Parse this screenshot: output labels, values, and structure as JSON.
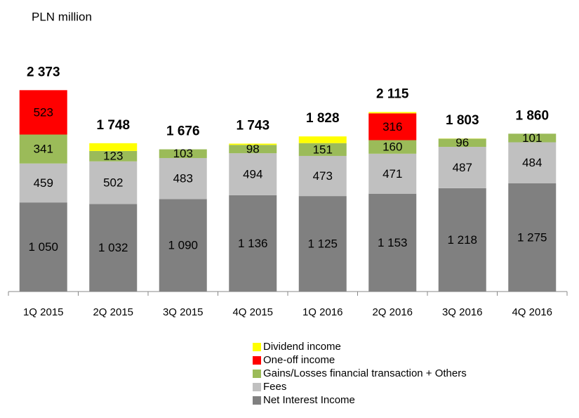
{
  "chart_data": {
    "type": "stacked_bar",
    "title": "PLN million",
    "categories": [
      "1Q 2015",
      "2Q 2015",
      "3Q 2015",
      "4Q 2015",
      "1Q 2016",
      "2Q 2016",
      "3Q 2016",
      "4Q 2016"
    ],
    "series": [
      {
        "name": "Net Interest Income",
        "color": "#808080",
        "values": [
          1050,
          1032,
          1090,
          1136,
          1125,
          1153,
          1218,
          1275
        ],
        "value_labels": [
          "1 050",
          "1 032",
          "1 090",
          "1 136",
          "1 125",
          "1 153",
          "1 218",
          "1 275"
        ]
      },
      {
        "name": "Fees",
        "color": "#c0c0c0",
        "values": [
          459,
          502,
          483,
          494,
          473,
          471,
          487,
          484
        ],
        "value_labels": [
          "459",
          "502",
          "483",
          "494",
          "473",
          "471",
          "487",
          "484"
        ]
      },
      {
        "name": "Gains/Losses financial transaction + Others",
        "color": "#9bbb59",
        "values": [
          341,
          123,
          103,
          98,
          151,
          160,
          96,
          101
        ],
        "value_labels": [
          "341",
          "123",
          "103",
          "98",
          "151",
          "160",
          "96",
          "101"
        ]
      },
      {
        "name": "One-off income",
        "color": "#ff0000",
        "values": [
          523,
          0,
          0,
          0,
          0,
          316,
          0,
          0
        ],
        "value_labels": [
          "523",
          null,
          null,
          null,
          null,
          "316",
          null,
          null
        ]
      },
      {
        "name": "Dividend income",
        "color": "#ffff00",
        "values": [
          0,
          91,
          0,
          15,
          79,
          15,
          2,
          0
        ]
      }
    ],
    "totals": [
      2373,
      1748,
      1676,
      1743,
      1828,
      2115,
      1803,
      1860
    ],
    "total_labels": [
      "2 373",
      "1 748",
      "1 676",
      "1 743",
      "1 828",
      "2 115",
      "1 803",
      "1 860"
    ],
    "ylim": [
      0,
      2500
    ]
  }
}
